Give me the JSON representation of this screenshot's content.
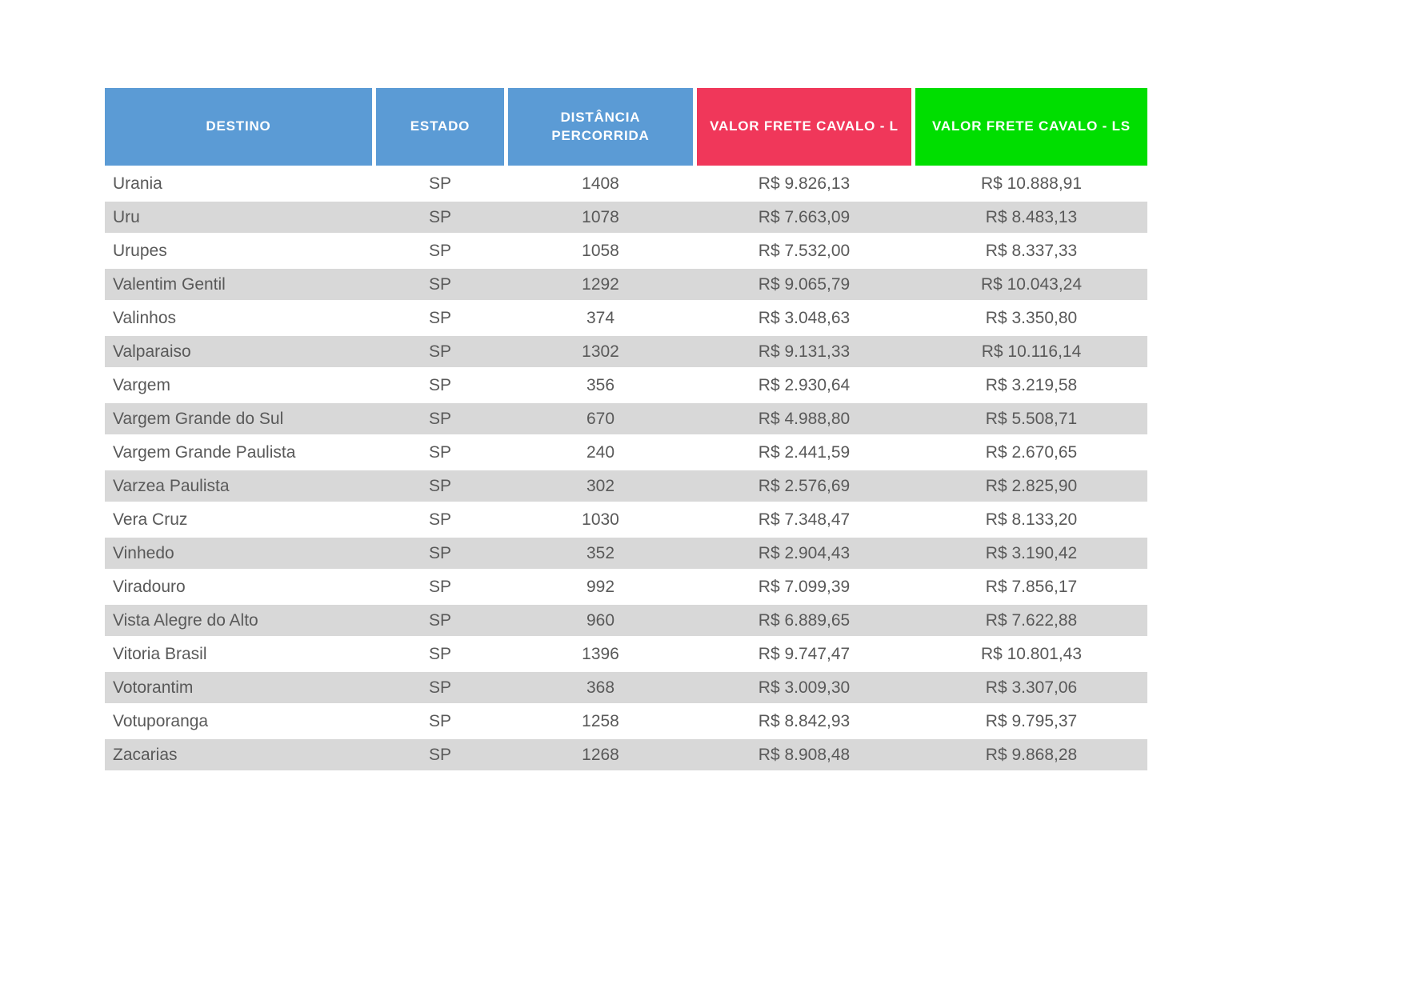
{
  "table": {
    "headers": {
      "destino": "DESTINO",
      "estado": "ESTADO",
      "distancia": "DISTÂNCIA PERCORRIDA",
      "valor_l": "VALOR FRETE CAVALO - L",
      "valor_ls": "VALOR FRETE CAVALO - LS"
    },
    "rows": [
      [
        "Urania",
        "SP",
        "1408",
        "R$ 9.826,13",
        "R$ 10.888,91"
      ],
      [
        "Uru",
        "SP",
        "1078",
        "R$ 7.663,09",
        "R$ 8.483,13"
      ],
      [
        "Urupes",
        "SP",
        "1058",
        "R$ 7.532,00",
        "R$ 8.337,33"
      ],
      [
        "Valentim Gentil",
        "SP",
        "1292",
        "R$ 9.065,79",
        "R$ 10.043,24"
      ],
      [
        "Valinhos",
        "SP",
        "374",
        "R$ 3.048,63",
        "R$ 3.350,80"
      ],
      [
        "Valparaiso",
        "SP",
        "1302",
        "R$ 9.131,33",
        "R$ 10.116,14"
      ],
      [
        "Vargem",
        "SP",
        "356",
        "R$ 2.930,64",
        "R$ 3.219,58"
      ],
      [
        "Vargem Grande do Sul",
        "SP",
        "670",
        "R$ 4.988,80",
        "R$ 5.508,71"
      ],
      [
        "Vargem Grande Paulista",
        "SP",
        "240",
        "R$ 2.441,59",
        "R$ 2.670,65"
      ],
      [
        "Varzea Paulista",
        "SP",
        "302",
        "R$ 2.576,69",
        "R$ 2.825,90"
      ],
      [
        "Vera Cruz",
        "SP",
        "1030",
        "R$ 7.348,47",
        "R$ 8.133,20"
      ],
      [
        "Vinhedo",
        "SP",
        "352",
        "R$ 2.904,43",
        "R$ 3.190,42"
      ],
      [
        "Viradouro",
        "SP",
        "992",
        "R$ 7.099,39",
        "R$ 7.856,17"
      ],
      [
        "Vista Alegre do Alto",
        "SP",
        "960",
        "R$ 6.889,65",
        "R$ 7.622,88"
      ],
      [
        "Vitoria Brasil",
        "SP",
        "1396",
        "R$ 9.747,47",
        "R$ 10.801,43"
      ],
      [
        "Votorantim",
        "SP",
        "368",
        "R$ 3.009,30",
        "R$ 3.307,06"
      ],
      [
        "Votuporanga",
        "SP",
        "1258",
        "R$ 8.842,93",
        "R$ 9.795,37"
      ],
      [
        "Zacarias",
        "SP",
        "1268",
        "R$ 8.908,48",
        "R$ 9.868,28"
      ]
    ]
  },
  "colors": {
    "header_blue": "#5B9BD5",
    "header_red": "#F0375A",
    "header_green": "#00DE00",
    "row_stripe": "#D8D8D8",
    "cell_text": "#595959"
  }
}
